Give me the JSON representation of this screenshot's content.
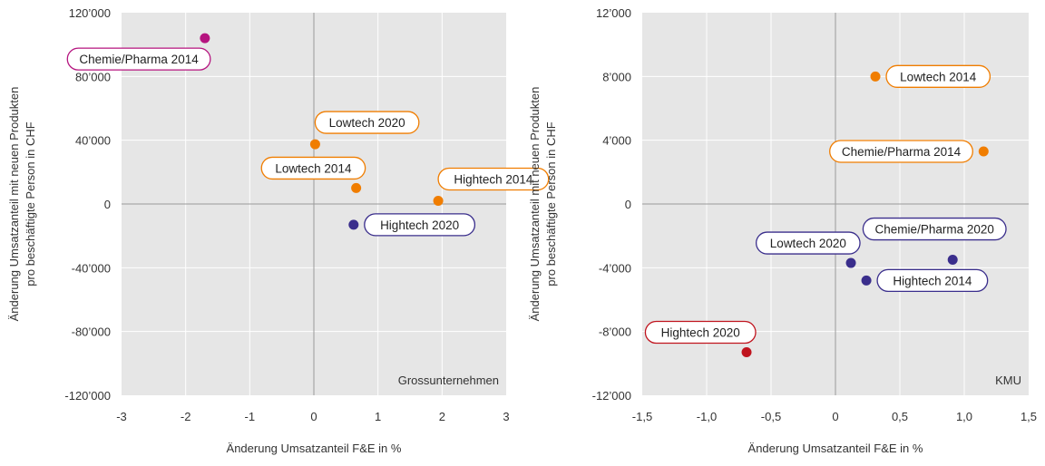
{
  "chart_data": [
    {
      "type": "scatter",
      "corner_label": "Grossunternehmen",
      "xlabel": "Änderung Umsatzanteil F&E in %",
      "ylabel": [
        "Änderung Umsatzanteil mit neuen Produkten",
        "pro beschäftigte Person in CHF"
      ],
      "xlim": [
        -3,
        3
      ],
      "ylim": [
        -120000,
        120000
      ],
      "x_ticks": [
        -3,
        -2,
        -1,
        0,
        1,
        2,
        3
      ],
      "x_tick_labels": [
        "-3",
        "-2",
        "-1",
        "0",
        "1",
        "2",
        "3"
      ],
      "y_ticks": [
        120000,
        80000,
        40000,
        0,
        -40000,
        -80000,
        -120000
      ],
      "y_tick_labels": [
        "120’000",
        "80’000",
        "40’000",
        "0",
        "-40’000",
        "-80’000",
        "-120’000"
      ],
      "grid": true,
      "points": [
        {
          "label": "Chemie/Pharma 2014",
          "x": -1.7,
          "y": 104000,
          "color": "#b5147f",
          "label_side": "below-left"
        },
        {
          "label": "Lowtech 2020",
          "x": 0.02,
          "y": 37500,
          "color": "#f07d00",
          "label_side": "above-right"
        },
        {
          "label": "Lowtech 2014",
          "x": 0.66,
          "y": 10000,
          "color": "#f07d00",
          "label_side": "above-left"
        },
        {
          "label": "Hightech 2014",
          "x": 1.94,
          "y": 2000,
          "color": "#f07d00",
          "label_side": "above-right"
        },
        {
          "label": "Hightech 2020",
          "x": 0.62,
          "y": -13000,
          "color": "#3a2e8c",
          "label_side": "right"
        }
      ]
    },
    {
      "type": "scatter",
      "corner_label": "KMU",
      "xlabel": "Änderung Umsatzanteil F&E in %",
      "ylabel": [
        "Änderung Umsatzanteil mit neuen Produkten",
        "pro beschäftigte Person  in CHF"
      ],
      "xlim": [
        -1.5,
        1.5
      ],
      "ylim": [
        -12000,
        12000
      ],
      "x_ticks": [
        -1.5,
        -1.0,
        -0.5,
        0,
        0.5,
        1.0,
        1.5
      ],
      "x_tick_labels": [
        "-1,5",
        "-1,0",
        "-0,5",
        "0",
        "0,5",
        "1,0",
        "1,5"
      ],
      "y_ticks": [
        12000,
        8000,
        4000,
        0,
        -4000,
        -8000,
        -12000
      ],
      "y_tick_labels": [
        "12’000",
        "8’000",
        "4’000",
        "0",
        "-4’000",
        "-8’000",
        "-12’000"
      ],
      "grid": true,
      "points": [
        {
          "label": "Lowtech 2014",
          "x": 0.31,
          "y": 8000,
          "color": "#f07d00",
          "label_side": "right"
        },
        {
          "label": "Chemie/Pharma 2014",
          "x": 1.15,
          "y": 3300,
          "color": "#f07d00",
          "label_side": "left"
        },
        {
          "label": "Chemie/Pharma 2020",
          "x": 0.91,
          "y": -3500,
          "color": "#3a2e8c",
          "label_side": "above"
        },
        {
          "label": "Lowtech 2020",
          "x": 0.12,
          "y": -3700,
          "color": "#3a2e8c",
          "label_side": "above-left"
        },
        {
          "label": "Hightech 2014",
          "x": 0.24,
          "y": -4800,
          "color": "#3a2e8c",
          "label_side": "right"
        },
        {
          "label": "Hightech 2020",
          "x": -0.69,
          "y": -9300,
          "color": "#c0141e",
          "label_side": "above-left"
        }
      ]
    }
  ]
}
